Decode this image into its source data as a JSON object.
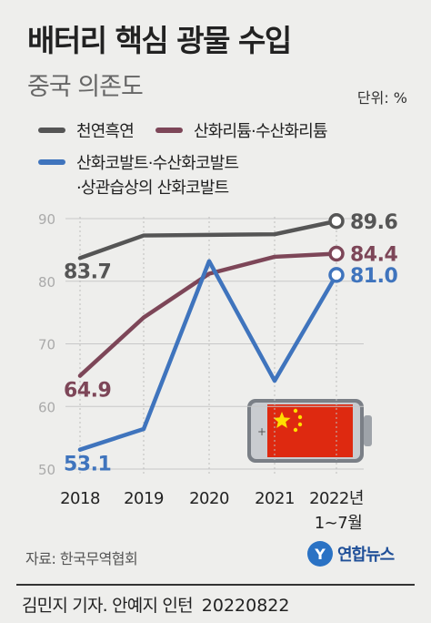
{
  "header": {
    "title": "배터리 핵심 광물 수입",
    "subtitle": "중국 의존도",
    "unit": "단위: %"
  },
  "footer": {
    "source": "자료: 한국무역협회",
    "logo_text": "연합뉴스",
    "byline": "김민지 기자. 안예지 인턴",
    "date": "20220822"
  },
  "chart_data": {
    "type": "line",
    "x": [
      "2018",
      "2019",
      "2020",
      "2021",
      "2022년"
    ],
    "x_sublabel": "1~7월",
    "ylim": [
      50,
      90
    ],
    "yticks": [
      50,
      60,
      70,
      80,
      90
    ],
    "grid": true,
    "legend_position": "top-left",
    "series": [
      {
        "name": "천연흑연",
        "color": "#555555",
        "values": [
          83.7,
          87.3,
          87.4,
          87.5,
          89.6
        ]
      },
      {
        "name": "산화리튬·수산화리튬",
        "color": "#7d4658",
        "values": [
          64.9,
          74.2,
          81.2,
          83.9,
          84.4
        ]
      },
      {
        "name": "산화코발트·수산화코발트",
        "name_line2": "·상관습상의 산화코발트",
        "color": "#3f74bd",
        "values": [
          53.1,
          56.4,
          83.2,
          64.1,
          81.0
        ]
      }
    ],
    "value_labels": {
      "start": [
        "83.7",
        "64.9",
        "53.1"
      ],
      "end": [
        "89.6",
        "84.4",
        "81.0"
      ]
    }
  }
}
